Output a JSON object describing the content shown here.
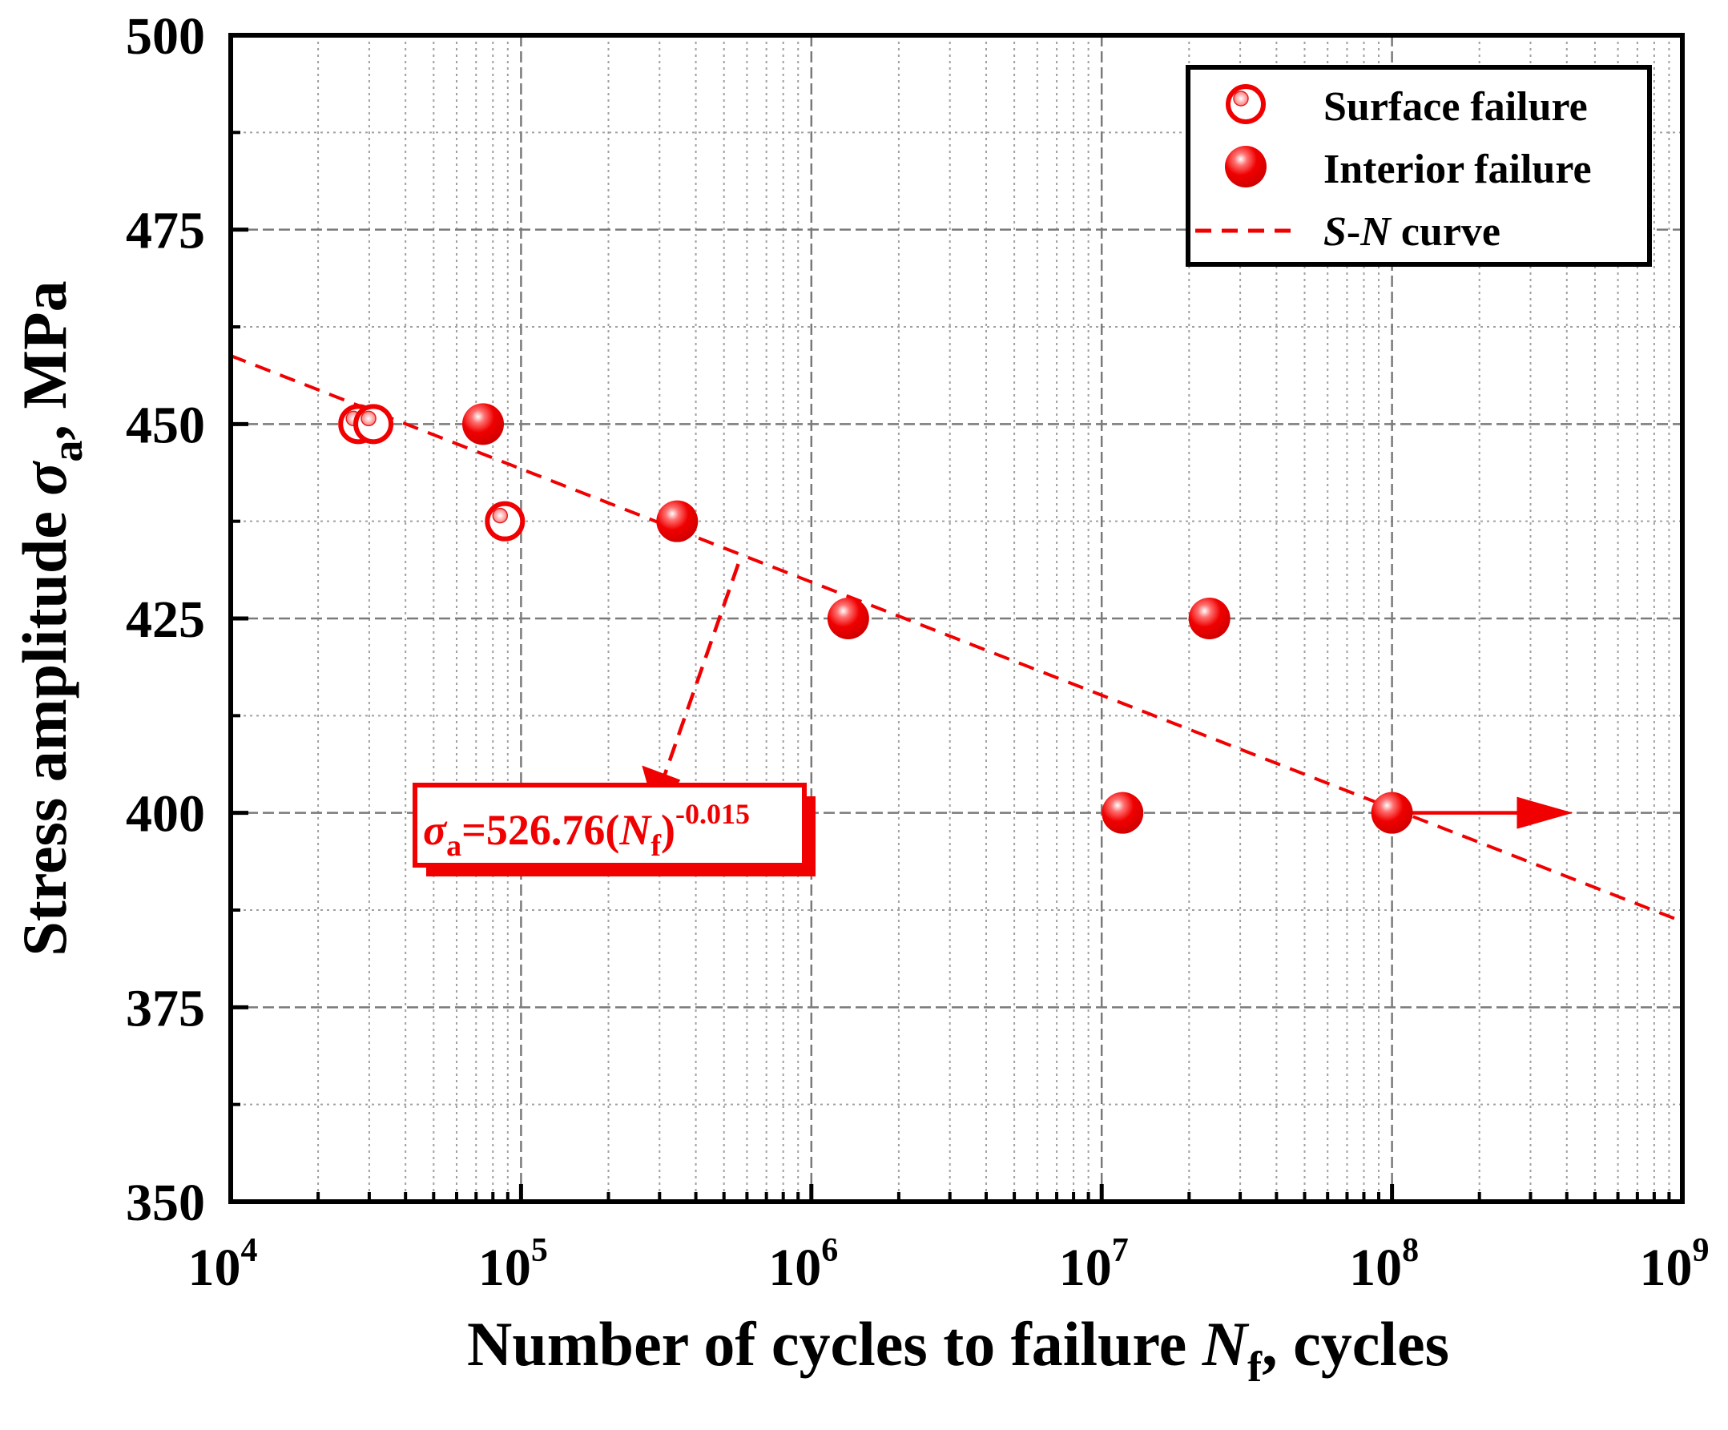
{
  "chart_data": {
    "type": "scatter",
    "title": "",
    "xlabel": {
      "main": "Number of cycles to failure ",
      "var": "N",
      "sub": "f",
      "tail": ", cycles"
    },
    "ylabel": {
      "main": "Stress amplitude ",
      "var": "σ",
      "sub": "a",
      "tail": ", MPa"
    },
    "x_scale": "log",
    "xlim": [
      10000,
      1000000000
    ],
    "ylim": [
      350,
      500
    ],
    "x_ticks": [
      {
        "value": 10000,
        "base": "10",
        "exp": "4"
      },
      {
        "value": 100000,
        "base": "10",
        "exp": "5"
      },
      {
        "value": 1000000,
        "base": "10",
        "exp": "6"
      },
      {
        "value": 10000000,
        "base": "10",
        "exp": "7"
      },
      {
        "value": 100000000,
        "base": "10",
        "exp": "8"
      },
      {
        "value": 1000000000,
        "base": "10",
        "exp": "9"
      }
    ],
    "y_ticks": [
      "350",
      "375",
      "400",
      "425",
      "450",
      "475",
      "500"
    ],
    "grid": true,
    "series": [
      {
        "name": "Surface failure",
        "marker": "hollow-circle",
        "points": [
          {
            "x": 27500,
            "y": 450
          },
          {
            "x": 31000,
            "y": 450
          },
          {
            "x": 88000,
            "y": 437.5
          }
        ]
      },
      {
        "name": "Interior failure",
        "marker": "filled-circle",
        "points": [
          {
            "x": 74000,
            "y": 450
          },
          {
            "x": 345000,
            "y": 437.5
          },
          {
            "x": 1340000,
            "y": 425
          },
          {
            "x": 11800000,
            "y": 400
          },
          {
            "x": 23500000,
            "y": 425
          },
          {
            "x": 100000000,
            "y": 400
          }
        ]
      },
      {
        "name": "S-N curve",
        "line": "dashed",
        "equation": {
          "coef": 526.76,
          "exponent": -0.015
        },
        "x_range": [
          10000,
          1000000000
        ]
      }
    ],
    "runout_arrow": {
      "from_x": 100000000,
      "to_x": 420000000,
      "y": 400
    },
    "annotation": {
      "var": "σ",
      "sub": "a",
      "eq": "=526.76(",
      "nvar": "N",
      "nsub": "f",
      "close": ")",
      "exp": "-0.015",
      "pointer": {
        "from_x": 560000,
        "from_y": 432,
        "to_x": 300000,
        "to_y": 403
      }
    },
    "legend": {
      "position": "top-right",
      "items": [
        {
          "label": "Surface failure"
        },
        {
          "label": "Interior failure"
        },
        {
          "var": "S",
          "dash": "-",
          "var2": "N",
          "tail": " curve"
        }
      ]
    },
    "colors": {
      "marker": "#f00000",
      "curve": "#f00000",
      "grid": "#a0a0a0",
      "axis": "#000000"
    }
  }
}
